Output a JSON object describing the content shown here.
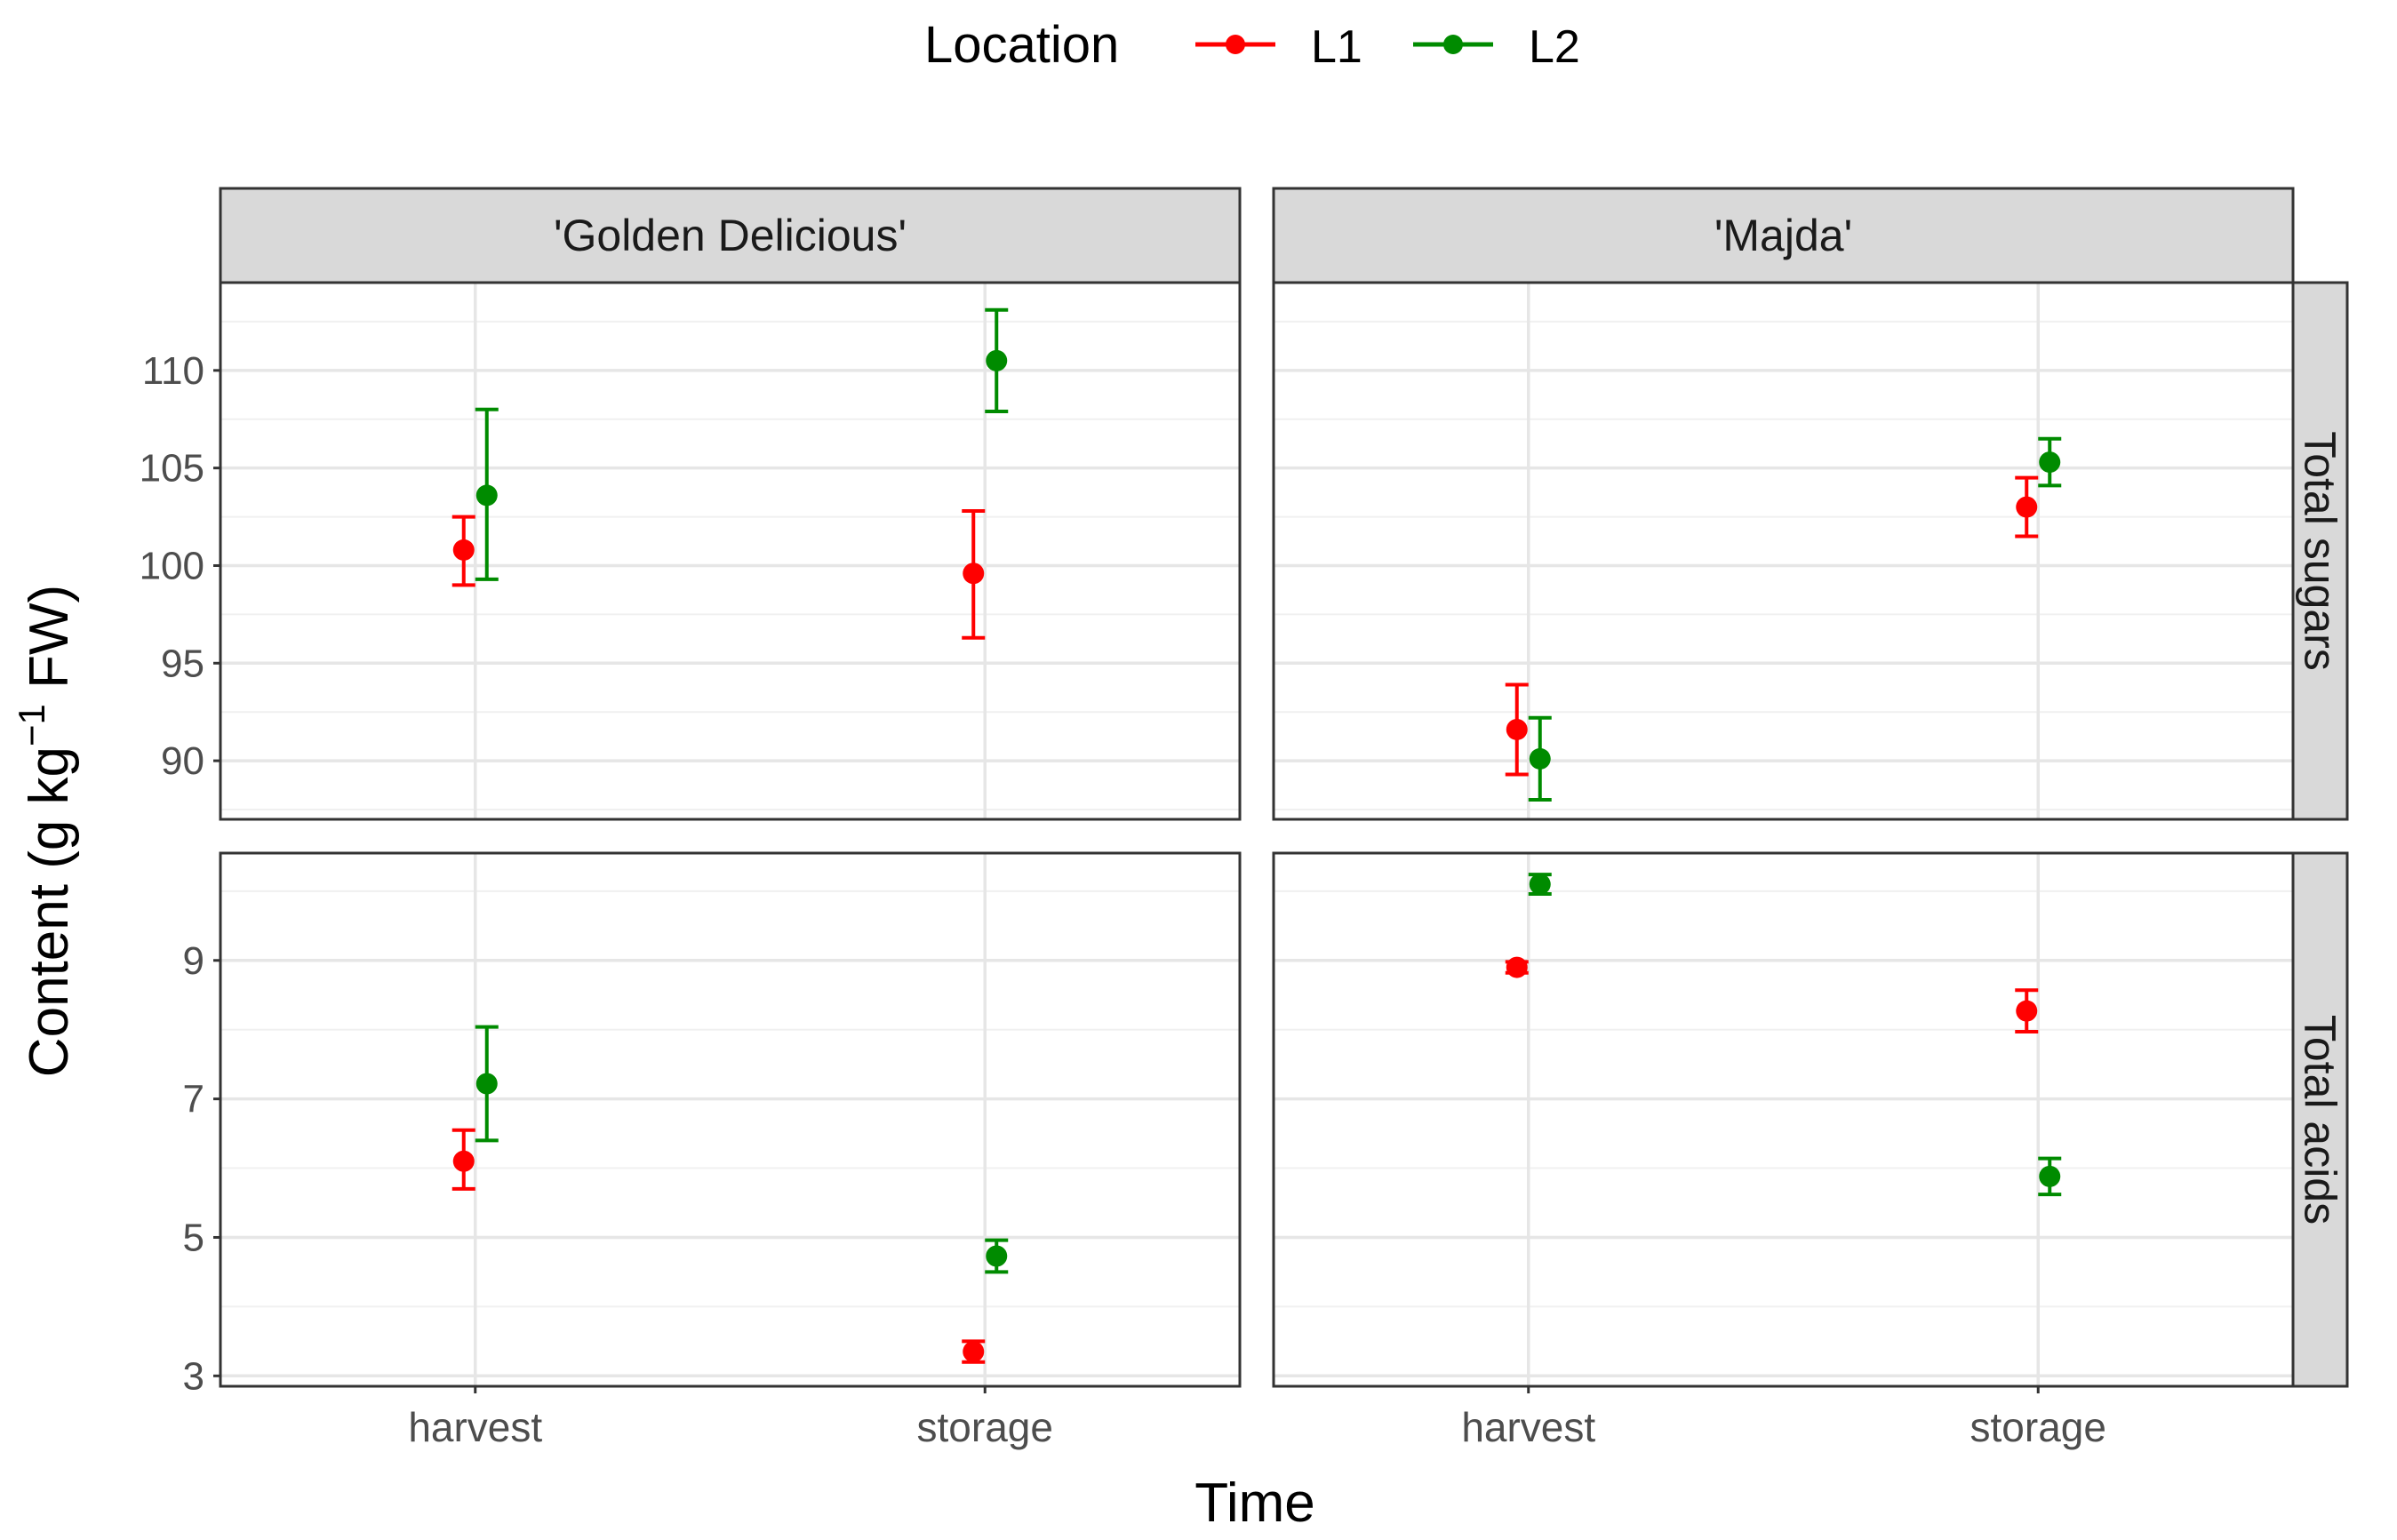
{
  "chart_data": {
    "type": "scatter",
    "subtype": "faceted point plot with error bars",
    "xlabel": "Time",
    "ylabel_prefix": "Content (g kg",
    "ylabel_sup": "−1",
    "ylabel_suffix": " FW)",
    "legend": {
      "title": "Location",
      "position": "top",
      "entries": [
        {
          "label": "L1",
          "color": "#FF0000"
        },
        {
          "label": "L2",
          "color": "#008B00"
        }
      ]
    },
    "columns": [
      "'Golden Delicious'",
      "'Majda'"
    ],
    "rows": [
      {
        "label": "Total sugars",
        "ylim": [
          87,
          114.5
        ],
        "yticks": [
          90,
          95,
          100,
          105,
          110
        ],
        "ytick_labels": [
          "90",
          "95",
          "100",
          "105",
          "110"
        ]
      },
      {
        "label": "Total acids",
        "ylim": [
          2.85,
          10.55
        ],
        "yticks": [
          3,
          5,
          7,
          9
        ],
        "ytick_labels": [
          "3",
          "5",
          "7",
          "9"
        ]
      }
    ],
    "categories": [
      "harvest",
      "storage"
    ],
    "series": [
      {
        "name": "L1",
        "color": "#FF0000",
        "points": [
          {
            "row": 0,
            "col": 0,
            "x": "harvest",
            "y": 100.8,
            "lo": 99.0,
            "hi": 102.5
          },
          {
            "row": 0,
            "col": 0,
            "x": "storage",
            "y": 99.6,
            "lo": 96.3,
            "hi": 102.8
          },
          {
            "row": 0,
            "col": 1,
            "x": "harvest",
            "y": 91.6,
            "lo": 89.3,
            "hi": 93.9
          },
          {
            "row": 0,
            "col": 1,
            "x": "storage",
            "y": 103.0,
            "lo": 101.5,
            "hi": 104.5
          },
          {
            "row": 1,
            "col": 0,
            "x": "harvest",
            "y": 6.1,
            "lo": 5.7,
            "hi": 6.55
          },
          {
            "row": 1,
            "col": 0,
            "x": "storage",
            "y": 3.35,
            "lo": 3.2,
            "hi": 3.5
          },
          {
            "row": 1,
            "col": 1,
            "x": "harvest",
            "y": 8.9,
            "lo": 8.82,
            "hi": 8.98
          },
          {
            "row": 1,
            "col": 1,
            "x": "storage",
            "y": 8.27,
            "lo": 7.97,
            "hi": 8.57
          }
        ]
      },
      {
        "name": "L2",
        "color": "#008B00",
        "points": [
          {
            "row": 0,
            "col": 0,
            "x": "harvest",
            "y": 103.6,
            "lo": 99.3,
            "hi": 108.0
          },
          {
            "row": 0,
            "col": 0,
            "x": "storage",
            "y": 110.5,
            "lo": 107.9,
            "hi": 113.1
          },
          {
            "row": 0,
            "col": 1,
            "x": "harvest",
            "y": 90.1,
            "lo": 88.0,
            "hi": 92.2
          },
          {
            "row": 0,
            "col": 1,
            "x": "storage",
            "y": 105.3,
            "lo": 104.1,
            "hi": 106.5
          },
          {
            "row": 1,
            "col": 0,
            "x": "harvest",
            "y": 7.22,
            "lo": 6.4,
            "hi": 8.04
          },
          {
            "row": 1,
            "col": 0,
            "x": "storage",
            "y": 4.73,
            "lo": 4.5,
            "hi": 4.96
          },
          {
            "row": 1,
            "col": 1,
            "x": "harvest",
            "y": 10.1,
            "lo": 9.96,
            "hi": 10.24
          },
          {
            "row": 1,
            "col": 1,
            "x": "storage",
            "y": 5.88,
            "lo": 5.62,
            "hi": 6.14
          }
        ]
      }
    ]
  }
}
